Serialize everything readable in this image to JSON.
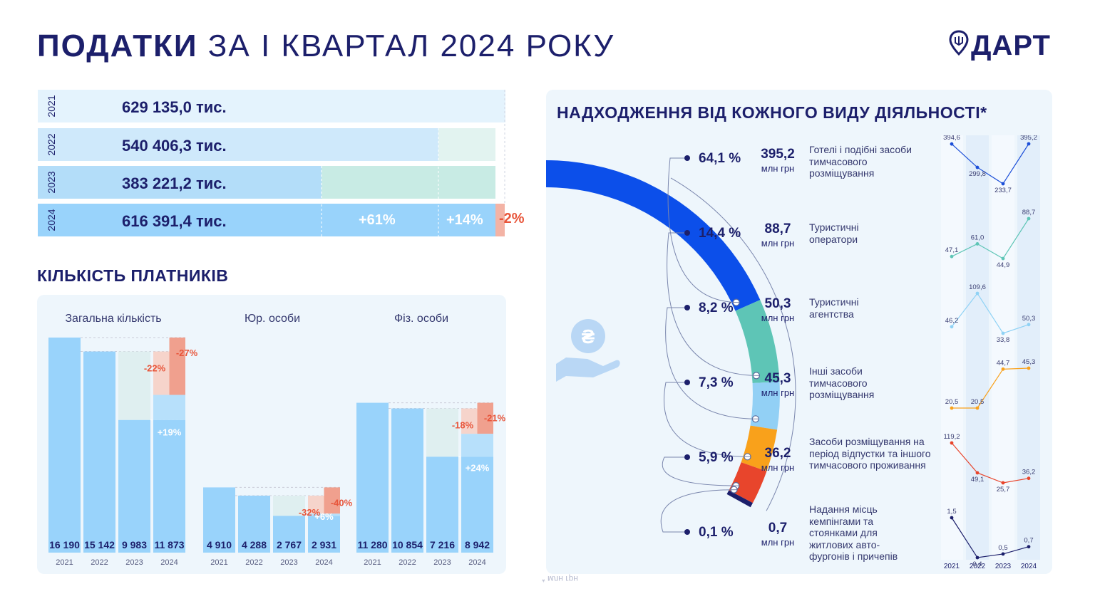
{
  "title": {
    "bold": "ПОДАТКИ",
    "light": "ЗА І КВАРТАЛ 2024 РОКУ"
  },
  "logo": {
    "text": "ДАРТ",
    "icon": "map-pin-trident-icon"
  },
  "colors": {
    "navy": "#1c1f6b",
    "bar": "#99d3fb",
    "bar_light": "#d4ecfc",
    "mint": "#c5ebe6",
    "negative": "#e8553a",
    "negative_light": "#f3b3a5",
    "donut_blue": "#0c4fea",
    "donut_teal": "#5ec5b6",
    "donut_lightblue": "#92d0f5",
    "donut_orange": "#f9a11b",
    "donut_red": "#e8452c"
  },
  "revenue_rows": [
    {
      "year": "2021",
      "value": "629 135,0  тис."
    },
    {
      "year": "2022",
      "value": "540 406,3  тис."
    },
    {
      "year": "2023",
      "value": "383 221,2  тис."
    },
    {
      "year": "2024",
      "value": "616 391,4 тис."
    }
  ],
  "revenue_changes": {
    "vs2023": "+61%",
    "vs2022": "+14%",
    "vs2021": "-2%"
  },
  "payers": {
    "title": "КІЛЬКІСТЬ ПЛАТНИКІВ"
  },
  "activities": {
    "title": "НАДХОДЖЕННЯ ВІД КОЖНОГО ВИДУ ДІЯЛЬНОСТІ*",
    "unit": "млн грн",
    "icon": "hand-hryvnia-coin-icon",
    "footnote": "* млн грн",
    "items": [
      {
        "pct": "64,1 %",
        "amount": "395,2",
        "desc": "Готелі і подібні засоби тимчасового розміщування"
      },
      {
        "pct": "14,4 %",
        "amount": "88,7",
        "desc": "Туристичні оператори"
      },
      {
        "pct": "8,2 %",
        "amount": "50,3",
        "desc": "Туристичні агентства"
      },
      {
        "pct": "7,3 %",
        "amount": "45,3",
        "desc": "Інші засоби тимчасового розміщування"
      },
      {
        "pct": "5,9 %",
        "amount": "36,2",
        "desc": "Засоби розміщування на період відпустки та іншого тимчасового проживання"
      },
      {
        "pct": "0,1 %",
        "amount": "0,7",
        "desc": "Надання місць кемпінгами та стоянками для житлових авто-фургонів і причепів"
      }
    ]
  },
  "chart_data": [
    {
      "type": "bar",
      "categories": [
        "2021",
        "2022",
        "2023",
        "2024"
      ],
      "values": [
        629135.0,
        540406.3,
        383221.2,
        616391.4
      ],
      "labels": [
        "629 135,0  тис.",
        "540 406,3  тис.",
        "383 221,2  тис.",
        "616 391,4 тис."
      ],
      "annotations": [
        "+61%",
        "+14%",
        "-2%"
      ]
    },
    {
      "type": "bar",
      "title": "КІЛЬКІСТЬ ПЛАТНИКІВ",
      "categories": [
        "2021",
        "2022",
        "2023",
        "2024"
      ],
      "groups": [
        {
          "name": "Загальна кількість",
          "values": [
            16190,
            15142,
            9983,
            11873
          ],
          "labels": [
            "16 190",
            "15 142",
            "9 983",
            "11 873"
          ],
          "up": "+19%",
          "down": [
            "-22%",
            "-27%"
          ]
        },
        {
          "name": "Юр. особи",
          "values": [
            4910,
            4288,
            2767,
            2931
          ],
          "labels": [
            "4 910",
            "4 288",
            "2 767",
            "2 931"
          ],
          "up": "+6%",
          "down": [
            "-32%",
            "-40%"
          ]
        },
        {
          "name": "Фіз. особи",
          "values": [
            11280,
            10854,
            7216,
            8942
          ],
          "labels": [
            "11 280",
            "10 854",
            "7 216",
            "8 942"
          ],
          "up": "+24%",
          "down": [
            "-18%",
            "-21%"
          ]
        }
      ]
    },
    {
      "type": "pie",
      "title": "НАДХОДЖЕННЯ ВІД КОЖНОГО ВИДУ ДІЯЛЬНОСТІ*",
      "categories": [
        "Готелі і подібні засоби тимчасового розміщування",
        "Туристичні оператори",
        "Туристичні агентства",
        "Інші засоби тимчасового розміщування",
        "Засоби розміщування на період відпустки та іншого тимчасового проживання",
        "Надання місць кемпінгами та стоянками для житлових авто-фургонів і причепів"
      ],
      "values": [
        64.1,
        14.4,
        8.2,
        7.3,
        5.9,
        0.1
      ],
      "colors": [
        "#0c4fea",
        "#5ec5b6",
        "#92d0f5",
        "#f9a11b",
        "#e8452c",
        "#1c1f6b"
      ]
    },
    {
      "type": "line",
      "categories": [
        "2021",
        "2022",
        "2023",
        "2024"
      ],
      "series": [
        {
          "values": [
            394.6,
            299.8,
            233.7,
            395.2
          ],
          "labels": [
            "394,6",
            "299,8",
            "233,7",
            "395,2"
          ],
          "color": "#1c4fd8"
        },
        {
          "values": [
            47.1,
            61.0,
            44.9,
            88.7
          ],
          "labels": [
            "47,1",
            "61,0",
            "44,9",
            "88,7"
          ],
          "color": "#5ec5b6"
        },
        {
          "values": [
            46.2,
            109.6,
            33.8,
            50.3
          ],
          "labels": [
            "46,2",
            "109,6",
            "33,8",
            "50,3"
          ],
          "color": "#8fd2f5"
        },
        {
          "values": [
            20.5,
            20.5,
            44.7,
            45.3
          ],
          "labels": [
            "20,5",
            "20,5",
            "44,7",
            "45,3"
          ],
          "color": "#f9a11b"
        },
        {
          "values": [
            119.2,
            49.1,
            25.7,
            36.2
          ],
          "labels": [
            "119,2",
            "49,1",
            "25,7",
            "36,2"
          ],
          "color": "#e8452c"
        },
        {
          "values": [
            1.5,
            0.4,
            0.5,
            0.7
          ],
          "labels": [
            "1,5",
            "0,4",
            "0,5",
            "0,7"
          ],
          "color": "#1c1f6b"
        }
      ]
    }
  ]
}
